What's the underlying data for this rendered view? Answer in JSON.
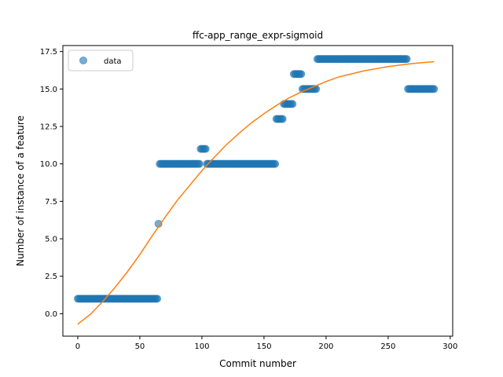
{
  "chart_data": {
    "type": "scatter",
    "title": "ffc-app_range_expr-sigmoid",
    "xlabel": "Commit number",
    "ylabel": "Number of instance of a feature",
    "xlim": [
      -12,
      302
    ],
    "ylim": [
      -1.5,
      17.9
    ],
    "xticks": [
      0,
      50,
      100,
      150,
      200,
      250,
      300
    ],
    "yticks": [
      0.0,
      2.5,
      5.0,
      7.5,
      10.0,
      12.5,
      15.0,
      17.5
    ],
    "ytick_labels": [
      "0.0",
      "2.5",
      "5.0",
      "7.5",
      "10.0",
      "12.5",
      "15.0",
      "17.5"
    ],
    "grid": false,
    "legend": {
      "position": "upper-left",
      "entries": [
        "data"
      ]
    },
    "colors": {
      "data": "#1f77b4",
      "fit": "#ff7f0e"
    },
    "series": [
      {
        "name": "data",
        "kind": "points",
        "segments": [
          {
            "x_from": 0,
            "x_to": 64,
            "y": 1
          },
          {
            "x_from": 65,
            "x_to": 65,
            "y": 6
          },
          {
            "x_from": 66,
            "x_to": 98,
            "y": 10
          },
          {
            "x_from": 99,
            "x_to": 103,
            "y": 11
          },
          {
            "x_from": 104,
            "x_to": 159,
            "y": 10
          },
          {
            "x_from": 160,
            "x_to": 165,
            "y": 13
          },
          {
            "x_from": 166,
            "x_to": 173,
            "y": 14
          },
          {
            "x_from": 174,
            "x_to": 180,
            "y": 16
          },
          {
            "x_from": 181,
            "x_to": 192,
            "y": 15
          },
          {
            "x_from": 193,
            "x_to": 265,
            "y": 17
          },
          {
            "x_from": 266,
            "x_to": 287,
            "y": 15
          }
        ]
      },
      {
        "name": "",
        "kind": "line",
        "x": [
          0,
          10,
          20,
          30,
          40,
          50,
          60,
          70,
          80,
          90,
          100,
          110,
          120,
          130,
          140,
          150,
          160,
          170,
          180,
          190,
          200,
          210,
          220,
          230,
          240,
          250,
          260,
          270,
          280,
          287
        ],
        "y": [
          -0.7,
          -0.05,
          0.8,
          1.75,
          2.8,
          3.95,
          5.2,
          6.4,
          7.55,
          8.55,
          9.55,
          10.45,
          11.3,
          12.05,
          12.75,
          13.35,
          13.9,
          14.4,
          14.8,
          15.15,
          15.5,
          15.8,
          16.0,
          16.2,
          16.35,
          16.5,
          16.6,
          16.7,
          16.78,
          16.82
        ]
      }
    ]
  }
}
